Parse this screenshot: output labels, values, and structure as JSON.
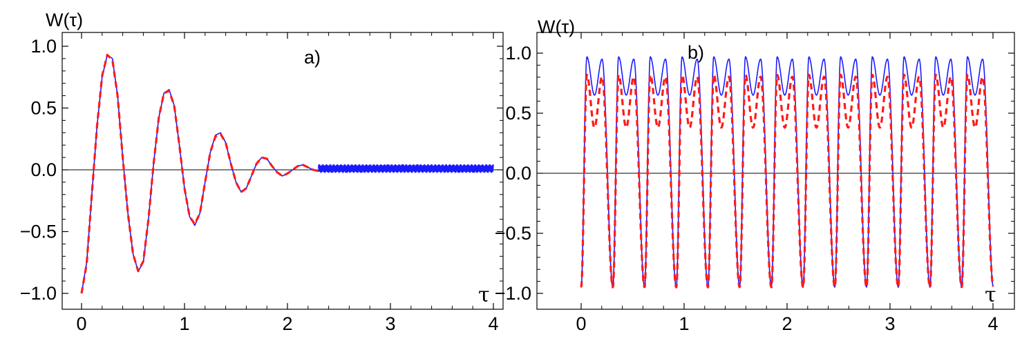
{
  "chart_data": [
    {
      "type": "line",
      "panel_label": "a)",
      "ylabel": "W(τ)",
      "xlabel": "τ",
      "xlim": [
        0,
        4
      ],
      "ylim": [
        -1.0,
        1.0
      ],
      "xticks": [
        "0",
        "1",
        "2",
        "3",
        "4"
      ],
      "yticks": [
        "1.0",
        "0.5",
        "0.0",
        "−0.5",
        "−1.0"
      ],
      "xtick_values": [
        0,
        1,
        2,
        3,
        4
      ],
      "ytick_values": [
        1.0,
        0.5,
        0.0,
        -0.5,
        -1.0
      ],
      "zero_line": true,
      "series": [
        {
          "style": "solid",
          "color": "#1a1aff",
          "x": [
            0,
            0.05,
            0.1,
            0.15,
            0.2,
            0.25,
            0.3,
            0.35,
            0.4,
            0.45,
            0.5,
            0.55,
            0.6,
            0.65,
            0.7,
            0.75,
            0.8,
            0.85,
            0.9,
            0.95,
            1.0,
            1.05,
            1.1,
            1.15,
            1.2,
            1.25,
            1.3,
            1.35,
            1.4,
            1.45,
            1.5,
            1.55,
            1.6,
            1.65,
            1.7,
            1.75,
            1.8,
            1.85,
            1.9,
            1.95,
            2.0,
            2.05,
            2.1,
            2.15,
            2.2,
            2.25,
            2.3,
            2.35,
            2.4,
            2.45,
            2.5,
            2.6,
            2.7,
            2.8,
            2.9,
            3.0,
            3.1,
            3.2,
            3.3,
            3.4,
            3.5,
            3.6,
            3.7,
            3.8,
            3.9,
            4.0
          ],
          "values": [
            -1.0,
            -0.75,
            -0.2,
            0.35,
            0.75,
            0.93,
            0.9,
            0.6,
            0.1,
            -0.35,
            -0.68,
            -0.82,
            -0.75,
            -0.4,
            0.05,
            0.42,
            0.62,
            0.65,
            0.52,
            0.2,
            -0.15,
            -0.38,
            -0.45,
            -0.35,
            -0.1,
            0.14,
            0.28,
            0.3,
            0.22,
            0.05,
            -0.1,
            -0.18,
            -0.15,
            -0.05,
            0.05,
            0.1,
            0.09,
            0.03,
            -0.02,
            -0.05,
            -0.03,
            0.0,
            0.03,
            0.04,
            0.02,
            0.0,
            -0.01,
            0.0,
            0.01,
            0.02,
            0.02,
            0.01,
            0.0,
            0.01,
            0.02,
            0.01,
            0.0,
            0.01,
            0.01,
            0.0,
            0.0,
            0.01,
            0.0,
            0.01,
            0.0,
            0.01
          ]
        },
        {
          "style": "dashed",
          "color": "#ff1a1a",
          "x": [
            0,
            0.05,
            0.1,
            0.15,
            0.2,
            0.25,
            0.3,
            0.35,
            0.4,
            0.45,
            0.5,
            0.55,
            0.6,
            0.65,
            0.7,
            0.75,
            0.8,
            0.85,
            0.9,
            0.95,
            1.0,
            1.05,
            1.1,
            1.15,
            1.2,
            1.25,
            1.3,
            1.35,
            1.4,
            1.45,
            1.5,
            1.55,
            1.6,
            1.65,
            1.7,
            1.75,
            1.8,
            1.85,
            1.9,
            1.95,
            2.0,
            2.05,
            2.1,
            2.15,
            2.2,
            2.25,
            2.3,
            2.35,
            2.4,
            2.45,
            2.5
          ],
          "values": [
            -1.0,
            -0.76,
            -0.2,
            0.35,
            0.76,
            0.93,
            0.89,
            0.6,
            0.1,
            -0.35,
            -0.68,
            -0.82,
            -0.74,
            -0.4,
            0.05,
            0.42,
            0.62,
            0.64,
            0.52,
            0.2,
            -0.15,
            -0.38,
            -0.44,
            -0.35,
            -0.1,
            0.14,
            0.27,
            0.29,
            0.22,
            0.05,
            -0.1,
            -0.18,
            -0.15,
            -0.05,
            0.05,
            0.1,
            0.09,
            0.03,
            -0.02,
            -0.05,
            -0.03,
            0.0,
            0.03,
            0.04,
            0.02,
            0.0,
            -0.01,
            0.0,
            0.01,
            0.02,
            0.02
          ]
        }
      ]
    },
    {
      "type": "line",
      "panel_label": "b)",
      "ylabel": "W(τ)",
      "xlabel": "τ",
      "xlim": [
        0,
        4
      ],
      "ylim": [
        -1.0,
        1.0
      ],
      "xticks": [
        "0",
        "1",
        "2",
        "3",
        "4"
      ],
      "yticks": [
        "1.0",
        "0.5",
        "0.0",
        "−0.5",
        "−1.0"
      ],
      "xtick_values": [
        0,
        1,
        2,
        3,
        4
      ],
      "ytick_values": [
        1.0,
        0.5,
        0.0,
        -0.5,
        -1.0
      ],
      "zero_line": true,
      "series": [
        {
          "style": "solid",
          "color": "#1a1aff",
          "period": 0.308,
          "peak": 0.97,
          "dip": 0.65,
          "trough": -0.95
        },
        {
          "style": "dashed",
          "color": "#ff1a1a",
          "period": 0.308,
          "peak": 0.82,
          "dip": 0.38,
          "trough": -0.95
        }
      ]
    }
  ]
}
